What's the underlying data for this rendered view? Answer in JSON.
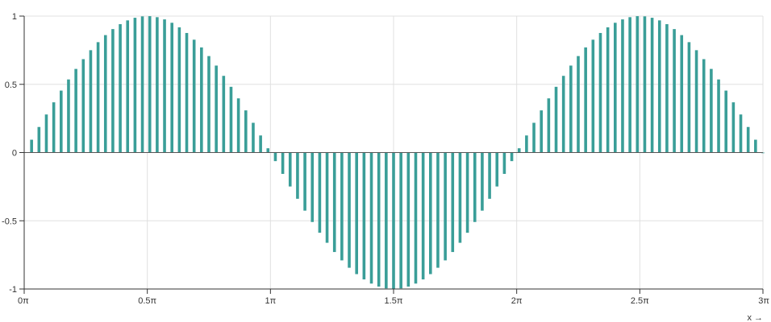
{
  "chart_data": {
    "type": "bar",
    "x_label": "x →",
    "x_domain": [
      0,
      3
    ],
    "x_unit": "π",
    "x_ticks": [
      {
        "value": 0,
        "label": "0π"
      },
      {
        "value": 0.5,
        "label": "0.5π"
      },
      {
        "value": 1,
        "label": "1π"
      },
      {
        "value": 1.5,
        "label": "1.5π"
      },
      {
        "value": 2,
        "label": "2π"
      },
      {
        "value": 2.5,
        "label": "2.5π"
      },
      {
        "value": 3,
        "label": "3π"
      }
    ],
    "y_domain": [
      -1,
      1
    ],
    "y_ticks": [
      {
        "value": 1,
        "label": "1"
      },
      {
        "value": 0.5,
        "label": "0.5"
      },
      {
        "value": 0,
        "label": "0"
      },
      {
        "value": -0.5,
        "label": "-0.5"
      },
      {
        "value": -1,
        "label": "-1"
      }
    ],
    "grid": true,
    "bar_color": "#3a9e98",
    "x": [
      0.03,
      0.06,
      0.09,
      0.12,
      0.15,
      0.18,
      0.21,
      0.24,
      0.27,
      0.3,
      0.33,
      0.36,
      0.39,
      0.42,
      0.45,
      0.48,
      0.51,
      0.54,
      0.57,
      0.6,
      0.63,
      0.66,
      0.69,
      0.72,
      0.75,
      0.78,
      0.81,
      0.84,
      0.87,
      0.9,
      0.93,
      0.96,
      0.99,
      1.02,
      1.05,
      1.08,
      1.11,
      1.14,
      1.17,
      1.2,
      1.23,
      1.26,
      1.29,
      1.32,
      1.35,
      1.38,
      1.41,
      1.44,
      1.47,
      1.5,
      1.53,
      1.56,
      1.59,
      1.62,
      1.65,
      1.68,
      1.71,
      1.74,
      1.77,
      1.8,
      1.83,
      1.86,
      1.89,
      1.92,
      1.95,
      1.98,
      2.01,
      2.04,
      2.07,
      2.1,
      2.13,
      2.16,
      2.19,
      2.22,
      2.25,
      2.28,
      2.31,
      2.34,
      2.37,
      2.4,
      2.43,
      2.46,
      2.49,
      2.52,
      2.55,
      2.58,
      2.61,
      2.64,
      2.67,
      2.7,
      2.73,
      2.76,
      2.79,
      2.82,
      2.85,
      2.88,
      2.91,
      2.94,
      2.97,
      3.0
    ],
    "values": [
      0.0941,
      0.1874,
      0.279,
      0.3681,
      0.454,
      0.5358,
      0.6129,
      0.6845,
      0.7501,
      0.809,
      0.8607,
      0.9048,
      0.9409,
      0.9686,
      0.9877,
      0.998,
      0.9995,
      0.9921,
      0.9759,
      0.9511,
      0.9178,
      0.8763,
      0.8271,
      0.7705,
      0.7071,
      0.6374,
      0.5621,
      0.4818,
      0.3971,
      0.309,
      0.2181,
      0.1253,
      0.0314,
      -0.0628,
      -0.1564,
      -0.2487,
      -0.3387,
      -0.4258,
      -0.509,
      -0.5878,
      -0.6613,
      -0.729,
      -0.7902,
      -0.8443,
      -0.891,
      -0.9298,
      -0.9603,
      -0.9823,
      -0.9956,
      -1.0,
      -0.9956,
      -0.9823,
      -0.9603,
      -0.9298,
      -0.891,
      -0.8443,
      -0.7902,
      -0.729,
      -0.6613,
      -0.5878,
      -0.509,
      -0.4258,
      -0.3387,
      -0.2487,
      -0.1564,
      -0.0628,
      0.0314,
      0.1253,
      0.2181,
      0.309,
      0.3971,
      0.4818,
      0.5621,
      0.6374,
      0.7071,
      0.7705,
      0.8271,
      0.8763,
      0.9178,
      0.9511,
      0.9759,
      0.9921,
      0.9995,
      0.998,
      0.9877,
      0.9686,
      0.9409,
      0.9048,
      0.8607,
      0.809,
      0.7501,
      0.6845,
      0.6129,
      0.5358,
      0.454,
      0.3681,
      0.279,
      0.1874,
      0.0941,
      0.0
    ]
  }
}
